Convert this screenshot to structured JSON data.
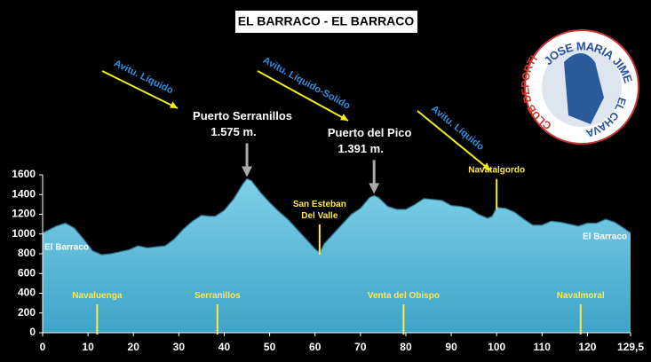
{
  "chart_data": {
    "type": "area",
    "title": "EL BARRACO - EL BARRACO",
    "color": "#5fbcd9",
    "x": [
      0,
      3,
      5,
      7,
      9,
      11,
      13,
      15,
      17,
      19,
      21,
      23,
      25,
      27,
      29,
      31,
      33,
      35,
      37,
      38,
      40,
      42,
      44,
      45,
      46,
      48,
      50,
      52,
      54,
      56,
      58,
      60,
      61,
      62,
      64,
      66,
      68,
      70,
      72,
      73,
      74,
      76,
      78,
      80,
      82,
      84,
      86,
      88,
      90,
      92,
      94,
      96,
      98,
      99,
      100,
      102,
      104,
      106,
      108,
      110,
      112,
      114,
      116,
      118,
      120,
      122,
      124,
      126,
      128,
      129.5
    ],
    "values": [
      1010,
      1080,
      1110,
      1060,
      950,
      830,
      790,
      800,
      820,
      840,
      880,
      860,
      870,
      880,
      950,
      1050,
      1130,
      1190,
      1180,
      1180,
      1240,
      1350,
      1500,
      1560,
      1540,
      1420,
      1320,
      1230,
      1150,
      1050,
      950,
      850,
      810,
      900,
      1000,
      1100,
      1200,
      1260,
      1370,
      1390,
      1370,
      1280,
      1250,
      1250,
      1300,
      1360,
      1350,
      1340,
      1290,
      1280,
      1260,
      1200,
      1160,
      1180,
      1270,
      1260,
      1220,
      1150,
      1090,
      1090,
      1130,
      1120,
      1100,
      1080,
      1110,
      1110,
      1150,
      1120,
      1060,
      1010
    ],
    "xlim": [
      0,
      129.5
    ],
    "ylim": [
      0,
      1600
    ],
    "xticks": [
      0,
      10,
      20,
      30,
      40,
      50,
      60,
      70,
      80,
      90,
      100,
      110,
      120,
      {
        "value": 129.5,
        "label": "129,5"
      }
    ],
    "yticks": [
      0,
      200,
      400,
      600,
      800,
      1000,
      1200,
      1400,
      1600
    ],
    "places": [
      {
        "lines": [
          "El Barraco"
        ],
        "x": 0,
        "marker": false
      },
      {
        "lines": [
          "Navaluenga"
        ],
        "x": 12,
        "marker": true
      },
      {
        "lines": [
          "Serranillos"
        ],
        "x": 38.5,
        "marker": true
      },
      {
        "lines": [
          "San Esteban",
          "Del Valle"
        ],
        "x": 61,
        "marker": true
      },
      {
        "lines": [
          "Venta del Obispo"
        ],
        "x": 79.5,
        "marker": true
      },
      {
        "lines": [
          "Navatalgordo"
        ],
        "x": 100,
        "marker": true
      },
      {
        "lines": [
          "Navalmoral"
        ],
        "x": 118.5,
        "marker": true
      },
      {
        "lines": [
          "El Barraco"
        ],
        "x": 129.5,
        "marker": false
      }
    ],
    "passes": [
      {
        "name": "Puerto  Serranillos",
        "height": "1.575 m.",
        "x": 45
      },
      {
        "name": "Puerto del Pico",
        "height": "1.391 m.",
        "x": 73
      }
    ],
    "feed_zones": [
      "Avitu. Líquido",
      "Avitu. Líquido-Solido",
      "Avitu. Líquido"
    ],
    "logo": {
      "top": "JOSE MARIA JIMENEZ",
      "right": "EL CHAVA",
      "left": "CLUB DEPORTIVO"
    }
  }
}
